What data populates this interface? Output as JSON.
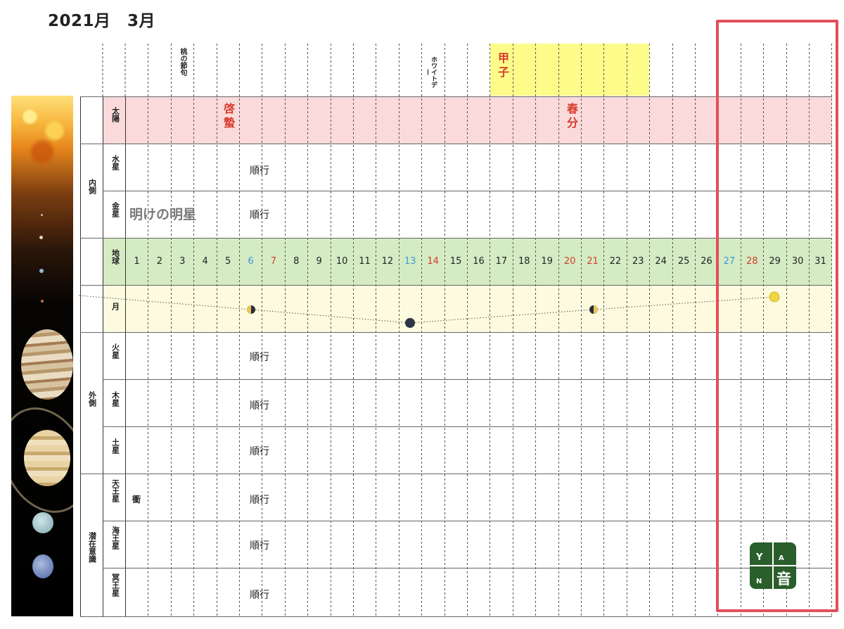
{
  "title": "2021月　3月",
  "events": {
    "momo": "桃の節句",
    "white": "ホワイトデー",
    "koushi": "甲子",
    "keichitsu": "啓蟄",
    "shunbun": "春分"
  },
  "groups": {
    "inner": "内側",
    "outer": "外側",
    "sub": "潜在意識"
  },
  "rows": {
    "sun": "太陽",
    "mercury": "水星",
    "venus": "金星",
    "earth": "地球",
    "moon": "月",
    "mars": "火星",
    "jupiter": "木星",
    "saturn": "土星",
    "uranus": "天王星",
    "neptune": "海王星",
    "pluto": "冥王星"
  },
  "notes": {
    "mercury": "順行",
    "venus_label": "明けの明星",
    "venus": "順行",
    "mars": "順行",
    "jupiter": "順行",
    "saturn": "順行",
    "uranus_event": "衝",
    "uranus": "順行",
    "neptune": "順行",
    "pluto": "順行"
  },
  "days": [
    "1",
    "2",
    "3",
    "4",
    "5",
    "6",
    "7",
    "8",
    "9",
    "10",
    "11",
    "12",
    "13",
    "14",
    "15",
    "16",
    "17",
    "18",
    "19",
    "20",
    "21",
    "22",
    "23",
    "24",
    "25",
    "26",
    "27",
    "28",
    "29",
    "30",
    "31"
  ],
  "day_colors": {
    "blue": [
      6,
      13,
      27
    ],
    "red": [
      7,
      14,
      20,
      21,
      28
    ]
  },
  "moon_phases": [
    {
      "day": 6,
      "phase": "last-quarter"
    },
    {
      "day": 13,
      "phase": "new"
    },
    {
      "day": 21,
      "phase": "first-quarter"
    },
    {
      "day": 29,
      "phase": "full"
    }
  ],
  "logo": {
    "a": "A",
    "n": "N",
    "char": "音",
    "sprout": "Y"
  },
  "colors": {
    "sun_row": "#fadadb",
    "earth_row": "#d5ebc4",
    "moon_row": "#fcfbdf",
    "koushi_band": "#fdfb8a",
    "highlight": "#e0505a",
    "logo": "#2a5e2a"
  }
}
